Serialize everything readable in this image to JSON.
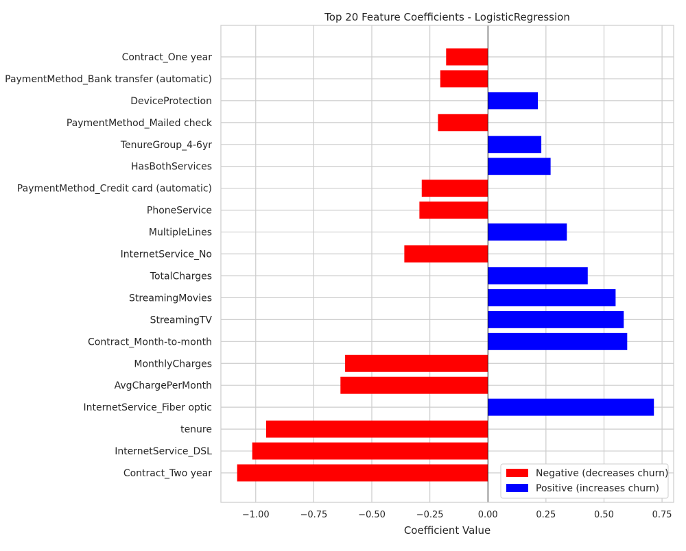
{
  "chart_data": {
    "type": "bar",
    "orientation": "horizontal",
    "title": "Top 20 Feature Coefficients - LogisticRegression",
    "xlabel": "Coefficient Value",
    "ylabel": "",
    "xlim": [
      -1.15,
      0.8
    ],
    "xticks": [
      -1.0,
      -0.75,
      -0.5,
      -0.25,
      0.0,
      0.25,
      0.5,
      0.75
    ],
    "xtick_labels": [
      "−1.00",
      "−0.75",
      "−0.50",
      "−0.25",
      "0.00",
      "0.25",
      "0.50",
      "0.75"
    ],
    "grid": true,
    "legend_position": "bottom-right",
    "colors": {
      "negative": "#ff0000",
      "positive": "#0000ff",
      "grid": "#cccccc",
      "zero_line": "#000000"
    },
    "legend": [
      {
        "label": "Negative (decreases churn)",
        "color": "#ff0000"
      },
      {
        "label": "Positive (increases churn)",
        "color": "#0000ff"
      }
    ],
    "categories": [
      "Contract_One year",
      "PaymentMethod_Bank transfer (automatic)",
      "DeviceProtection",
      "PaymentMethod_Mailed check",
      "TenureGroup_4-6yr",
      "HasBothServices",
      "PaymentMethod_Credit card (automatic)",
      "PhoneService",
      "MultipleLines",
      "InternetService_No",
      "TotalCharges",
      "StreamingMovies",
      "StreamingTV",
      "Contract_Month-to-month",
      "MonthlyCharges",
      "AvgChargePerMonth",
      "InternetService_Fiber optic",
      "tenure",
      "InternetService_DSL",
      "Contract_Two year"
    ],
    "values": [
      -0.18,
      -0.205,
      0.215,
      -0.215,
      0.23,
      0.27,
      -0.285,
      -0.295,
      0.34,
      -0.36,
      0.43,
      0.55,
      0.585,
      0.6,
      -0.615,
      -0.635,
      0.715,
      -0.955,
      -1.015,
      -1.08
    ]
  }
}
